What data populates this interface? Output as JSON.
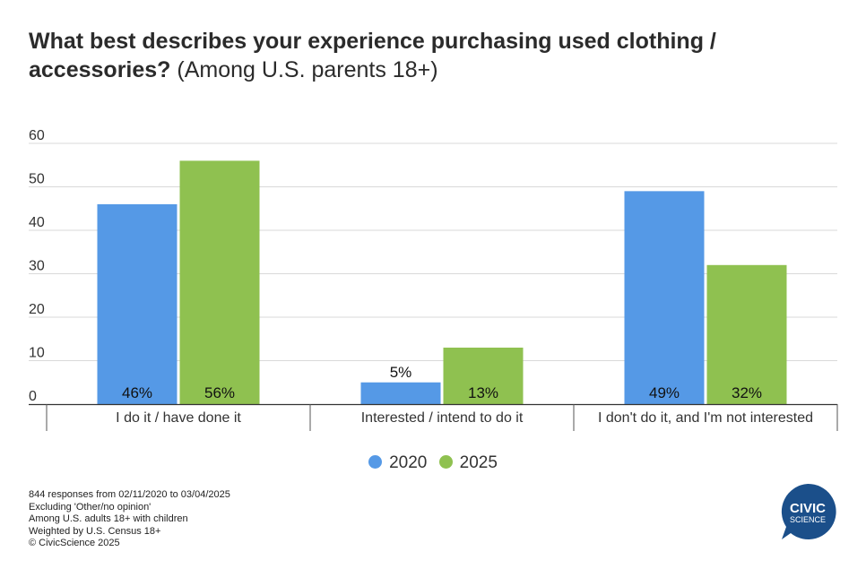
{
  "title": {
    "main": "What best describes your experience purchasing used clothing / accessories?",
    "sub": "(Among U.S. parents 18+)"
  },
  "chart_data": {
    "type": "bar",
    "categories": [
      "I do it / have done it",
      "Interested / intend to do it",
      "I don't do it, and I'm not interested"
    ],
    "series": [
      {
        "name": "2020",
        "color": "#5599e6",
        "values": [
          46,
          5,
          49
        ],
        "labels": [
          "46%",
          "5%",
          "49%"
        ]
      },
      {
        "name": "2025",
        "color": "#8fc150",
        "values": [
          56,
          13,
          32
        ],
        "labels": [
          "56%",
          "13%",
          "32%"
        ]
      }
    ],
    "ylim": [
      0,
      60
    ],
    "yticks": [
      0,
      10,
      20,
      30,
      40,
      50,
      60
    ],
    "grid": true,
    "legend": "bottom-center"
  },
  "legend": {
    "items": [
      "2020",
      "2025"
    ]
  },
  "footer": {
    "lines": [
      "844 responses from 02/11/2020 to 03/04/2025",
      "Excluding 'Other/no opinion'",
      "Among U.S. adults 18+ with children",
      "Weighted by U.S. Census 18+",
      "© CivicScience 2025"
    ]
  },
  "logo": {
    "line1": "CIVIC",
    "line2": "SCIENCE",
    "color": "#1b4f8a"
  }
}
